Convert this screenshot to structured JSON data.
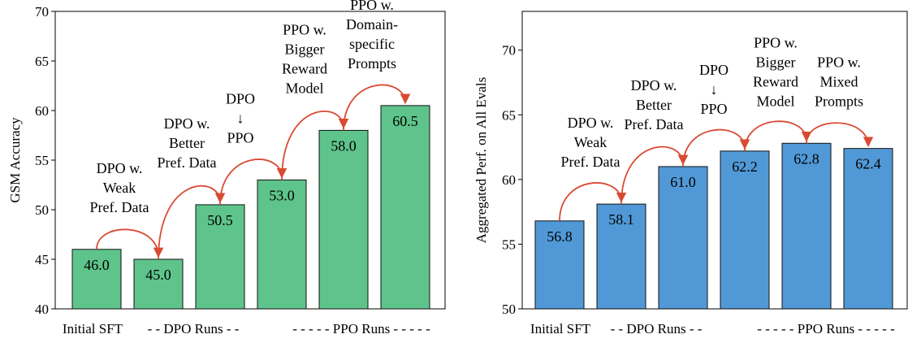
{
  "colors": {
    "arrow": "#d94a33",
    "bar_edge": "#111111"
  },
  "chart_data": [
    {
      "type": "bar",
      "ylabel": "GSM Accuracy",
      "ylim": [
        40,
        70
      ],
      "yticks": [
        40,
        45,
        50,
        55,
        60,
        65,
        70
      ],
      "values": [
        46.0,
        45.0,
        50.5,
        53.0,
        58.0,
        60.5
      ],
      "value_labels": [
        "46.0",
        "45.0",
        "50.5",
        "53.0",
        "58.0",
        "60.5"
      ],
      "bar_color": "#5ec48b",
      "annotations": [
        [
          "DPO w.",
          "Weak",
          "Pref. Data"
        ],
        [
          "DPO w.",
          "Better",
          "Pref. Data"
        ],
        [
          "DPO",
          "↓",
          "PPO"
        ],
        [
          "PPO w.",
          "Bigger",
          "Reward",
          "Model"
        ],
        [
          "PPO w.",
          "Domain-",
          "specific",
          "Prompts"
        ]
      ],
      "groups": [
        "Initial SFT",
        "- - DPO Runs - -",
        "- - - - - PPO Runs - - - - -"
      ]
    },
    {
      "type": "bar",
      "ylabel": "Aggregated Perf. on All Evals",
      "ylim": [
        50,
        73
      ],
      "yticks": [
        50,
        55,
        60,
        65,
        70
      ],
      "values": [
        56.8,
        58.1,
        61.0,
        62.2,
        62.8,
        62.4
      ],
      "value_labels": [
        "56.8",
        "58.1",
        "61.0",
        "62.2",
        "62.8",
        "62.4"
      ],
      "bar_color": "#5199d6",
      "annotations": [
        [
          "DPO w.",
          "Weak",
          "Pref. Data"
        ],
        [
          "DPO w.",
          "Better",
          "Pref. Data"
        ],
        [
          "DPO",
          "↓",
          "PPO"
        ],
        [
          "PPO w.",
          "Bigger",
          "Reward",
          "Model"
        ],
        [
          "PPO w.",
          "Mixed",
          "Prompts"
        ]
      ],
      "groups": [
        "Initial SFT",
        "- - DPO Runs - -",
        "- - - - - PPO Runs - - - - -"
      ]
    }
  ]
}
